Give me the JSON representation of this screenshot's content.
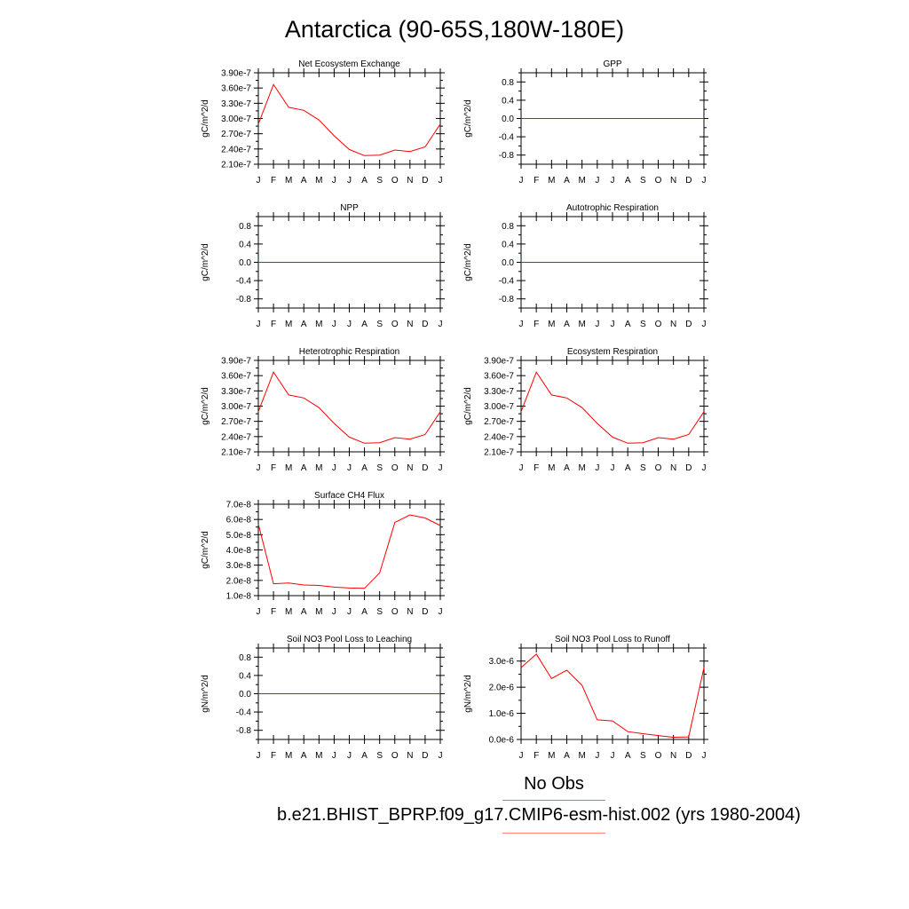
{
  "title": "Antarctica (90-65S,180W-180E)",
  "legend": {
    "obs_label": "No Obs",
    "model_label": "b.e21.BHIST_BPRP.f09_g17.CMIP6-esm-hist.002 (yrs 1980-2004)",
    "obs_color": "#8080ff",
    "model_color": "#ff8080"
  },
  "line_color": "#ff0000",
  "chart_data": [
    {
      "type": "line",
      "title": "Net Ecosystem Exchange",
      "ylabel": "gC/m^2/d",
      "x": [
        "J",
        "F",
        "M",
        "A",
        "M",
        "J",
        "J",
        "A",
        "S",
        "O",
        "N",
        "D",
        "J"
      ],
      "ylim": [
        2.1e-07,
        3.9e-07
      ],
      "yticks": [
        "2.10e-7",
        "2.40e-7",
        "2.70e-7",
        "3.00e-7",
        "3.30e-7",
        "3.60e-7",
        "3.90e-7"
      ],
      "ytick_values": [
        2.1e-07,
        2.4e-07,
        2.7e-07,
        3e-07,
        3.3e-07,
        3.6e-07,
        3.9e-07
      ],
      "series": [
        {
          "values": [
            2.89e-07,
            3.67e-07,
            3.22e-07,
            3.16e-07,
            2.97e-07,
            2.66e-07,
            2.39e-07,
            2.27e-07,
            2.28e-07,
            2.38e-07,
            2.35e-07,
            2.44e-07,
            2.89e-07
          ]
        }
      ]
    },
    {
      "type": "line",
      "title": "GPP",
      "ylabel": "gC/m^2/d",
      "x": [
        "J",
        "F",
        "M",
        "A",
        "M",
        "J",
        "J",
        "A",
        "S",
        "O",
        "N",
        "D",
        "J"
      ],
      "ylim": [
        -1.0,
        1.0
      ],
      "yticks": [
        "-0.8",
        "-0.4",
        "0.0",
        "0.4",
        "0.8"
      ],
      "ytick_values": [
        -0.8,
        -0.4,
        0.0,
        0.4,
        0.8
      ],
      "series": [
        {
          "values": [
            0,
            0,
            0,
            0,
            0,
            0,
            0,
            0,
            0,
            0,
            0,
            0,
            0
          ]
        }
      ]
    },
    {
      "type": "line",
      "title": "NPP",
      "ylabel": "gC/m^2/d",
      "x": [
        "J",
        "F",
        "M",
        "A",
        "M",
        "J",
        "J",
        "A",
        "S",
        "O",
        "N",
        "D",
        "J"
      ],
      "ylim": [
        -1.0,
        1.0
      ],
      "yticks": [
        "-0.8",
        "-0.4",
        "0.0",
        "0.4",
        "0.8"
      ],
      "ytick_values": [
        -0.8,
        -0.4,
        0.0,
        0.4,
        0.8
      ],
      "series": [
        {
          "values": [
            0,
            0,
            0,
            0,
            0,
            0,
            0,
            0,
            0,
            0,
            0,
            0,
            0
          ]
        }
      ]
    },
    {
      "type": "line",
      "title": "Autotrophic Respiration",
      "ylabel": "gC/m^2/d",
      "x": [
        "J",
        "F",
        "M",
        "A",
        "M",
        "J",
        "J",
        "A",
        "S",
        "O",
        "N",
        "D",
        "J"
      ],
      "ylim": [
        -1.0,
        1.0
      ],
      "yticks": [
        "-0.8",
        "-0.4",
        "0.0",
        "0.4",
        "0.8"
      ],
      "ytick_values": [
        -0.8,
        -0.4,
        0.0,
        0.4,
        0.8
      ],
      "series": [
        {
          "values": [
            0,
            0,
            0,
            0,
            0,
            0,
            0,
            0,
            0,
            0,
            0,
            0,
            0
          ]
        }
      ]
    },
    {
      "type": "line",
      "title": "Heterotrophic Respiration",
      "ylabel": "gC/m^2/d",
      "x": [
        "J",
        "F",
        "M",
        "A",
        "M",
        "J",
        "J",
        "A",
        "S",
        "O",
        "N",
        "D",
        "J"
      ],
      "ylim": [
        2.1e-07,
        3.9e-07
      ],
      "yticks": [
        "2.10e-7",
        "2.40e-7",
        "2.70e-7",
        "3.00e-7",
        "3.30e-7",
        "3.60e-7",
        "3.90e-7"
      ],
      "ytick_values": [
        2.1e-07,
        2.4e-07,
        2.7e-07,
        3e-07,
        3.3e-07,
        3.6e-07,
        3.9e-07
      ],
      "series": [
        {
          "values": [
            2.89e-07,
            3.67e-07,
            3.22e-07,
            3.16e-07,
            2.97e-07,
            2.66e-07,
            2.39e-07,
            2.27e-07,
            2.28e-07,
            2.38e-07,
            2.35e-07,
            2.44e-07,
            2.89e-07
          ]
        }
      ]
    },
    {
      "type": "line",
      "title": "Ecosystem Respiration",
      "ylabel": "gC/m^2/d",
      "x": [
        "J",
        "F",
        "M",
        "A",
        "M",
        "J",
        "J",
        "A",
        "S",
        "O",
        "N",
        "D",
        "J"
      ],
      "ylim": [
        2.1e-07,
        3.9e-07
      ],
      "yticks": [
        "2.10e-7",
        "2.40e-7",
        "2.70e-7",
        "3.00e-7",
        "3.30e-7",
        "3.60e-7",
        "3.90e-7"
      ],
      "ytick_values": [
        2.1e-07,
        2.4e-07,
        2.7e-07,
        3e-07,
        3.3e-07,
        3.6e-07,
        3.9e-07
      ],
      "series": [
        {
          "values": [
            2.89e-07,
            3.67e-07,
            3.22e-07,
            3.16e-07,
            2.97e-07,
            2.66e-07,
            2.39e-07,
            2.27e-07,
            2.28e-07,
            2.38e-07,
            2.35e-07,
            2.44e-07,
            2.89e-07
          ]
        }
      ]
    },
    {
      "type": "line",
      "title": "Surface CH4 Flux",
      "ylabel": "gC/m^2/d",
      "x": [
        "J",
        "F",
        "M",
        "A",
        "M",
        "J",
        "J",
        "A",
        "S",
        "O",
        "N",
        "D",
        "J"
      ],
      "ylim": [
        1e-08,
        7e-08
      ],
      "yticks": [
        "1.0e-8",
        "2.0e-8",
        "3.0e-8",
        "4.0e-8",
        "5.0e-8",
        "6.0e-8",
        "7.0e-8"
      ],
      "ytick_values": [
        1e-08,
        2e-08,
        3e-08,
        4e-08,
        5e-08,
        6e-08,
        7e-08
      ],
      "series": [
        {
          "values": [
            5.7e-08,
            1.78e-08,
            1.83e-08,
            1.7e-08,
            1.67e-08,
            1.56e-08,
            1.5e-08,
            1.48e-08,
            2.5e-08,
            5.8e-08,
            6.3e-08,
            6.1e-08,
            5.6e-08
          ]
        }
      ]
    },
    {
      "type": "line",
      "title": "Soil NO3 Pool Loss to Leaching",
      "ylabel": "gN/m^2/d",
      "x": [
        "J",
        "F",
        "M",
        "A",
        "M",
        "J",
        "J",
        "A",
        "S",
        "O",
        "N",
        "D",
        "J"
      ],
      "ylim": [
        -1.0,
        1.0
      ],
      "yticks": [
        "-0.8",
        "-0.4",
        "0.0",
        "0.4",
        "0.8"
      ],
      "ytick_values": [
        -0.8,
        -0.4,
        0.0,
        0.4,
        0.8
      ],
      "series": [
        {
          "values": [
            0,
            0,
            0,
            0,
            0,
            0,
            0,
            0,
            0,
            0,
            0,
            0,
            0
          ]
        }
      ]
    },
    {
      "type": "line",
      "title": "Soil NO3 Pool Loss to Runoff",
      "ylabel": "gN/m^2/d",
      "x": [
        "J",
        "F",
        "M",
        "A",
        "M",
        "J",
        "J",
        "A",
        "S",
        "O",
        "N",
        "D",
        "J"
      ],
      "ylim": [
        0,
        3.5e-06
      ],
      "yticks": [
        "0.0e-6",
        "1.0e-6",
        "2.0e-6",
        "3.0e-6"
      ],
      "ytick_values": [
        0,
        1e-06,
        2e-06,
        3e-06
      ],
      "series": [
        {
          "values": [
            2.75e-06,
            3.27e-06,
            2.33e-06,
            2.65e-06,
            2.07e-06,
            7.5e-07,
            7.1e-07,
            3e-07,
            2.2e-07,
            1.5e-07,
            8e-08,
            1e-07,
            2.75e-06
          ]
        }
      ]
    }
  ]
}
